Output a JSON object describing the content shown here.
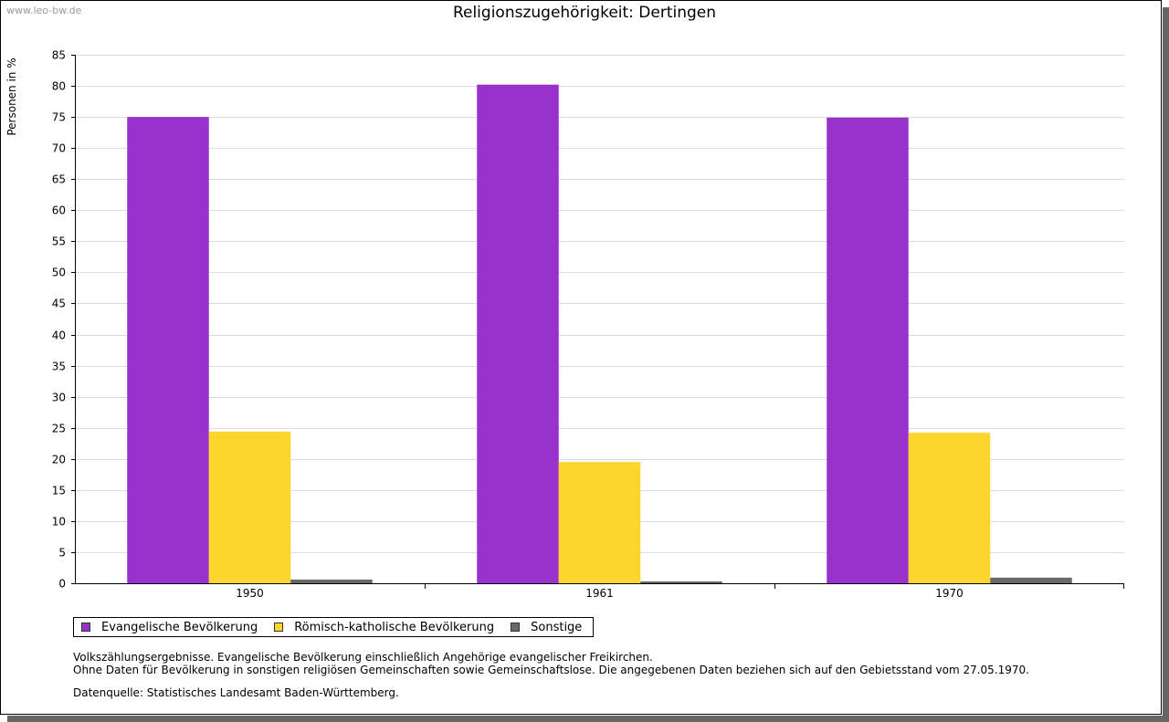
{
  "watermark": "www.leo-bw.de",
  "chart_data": {
    "type": "bar",
    "title": "Religionszugehörigkeit: Dertingen",
    "xlabel": "",
    "ylabel": "Personen in %",
    "ylim": [
      0,
      85
    ],
    "yticks": [
      0,
      5,
      10,
      15,
      20,
      25,
      30,
      35,
      40,
      45,
      50,
      55,
      60,
      65,
      70,
      75,
      80,
      85
    ],
    "grid": true,
    "categories": [
      "1950",
      "1961",
      "1970"
    ],
    "series": [
      {
        "name": "Evangelische Bevölkerung",
        "color": "#9932CC",
        "values": [
          75.0,
          80.2,
          74.9
        ]
      },
      {
        "name": "Römisch-katholische Bevölkerung",
        "color": "#FCD52D",
        "values": [
          24.4,
          19.5,
          24.2
        ]
      },
      {
        "name": "Sonstige",
        "color": "#696969",
        "values": [
          0.6,
          0.3,
          0.9
        ]
      }
    ],
    "legend_position": "bottom-left"
  },
  "notes": {
    "line1": "Volkszählungsergebnisse. Evangelische Bevölkerung einschließlich Angehörige evangelischer Freikirchen.",
    "line2": "Ohne Daten für Bevölkerung in sonstigen religiösen Gemeinschaften sowie Gemeinschaftslose. Die angegebenen Daten beziehen sich auf den Gebietsstand vom 27.05.1970."
  },
  "source": "Datenquelle: Statistisches Landesamt Baden-Württemberg."
}
